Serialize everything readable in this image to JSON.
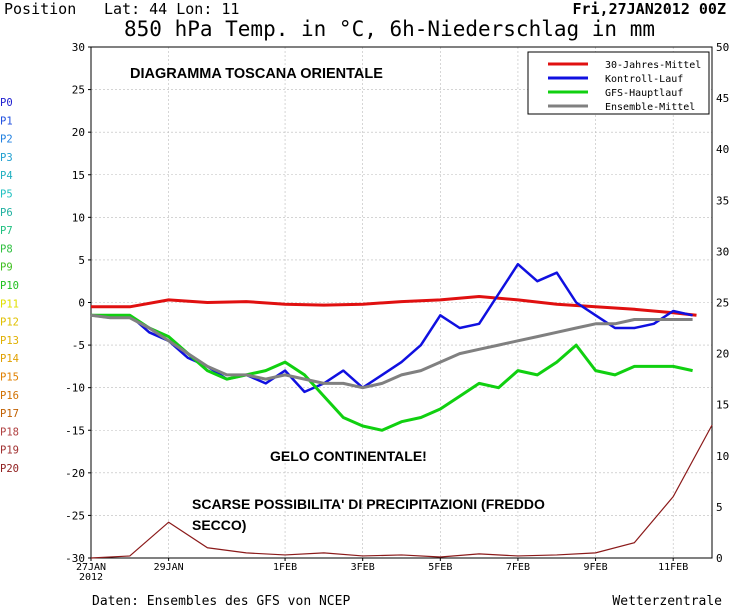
{
  "header": {
    "position_label": "Position",
    "lat_lon": "Lat: 44 Lon: 11",
    "date": "Fri,27JAN2012 00Z",
    "title": "850 hPa Temp. in °C, 6h-Niederschlag in mm"
  },
  "footer": {
    "source": "Daten: Ensembles des GFS von NCEP",
    "brand": "Wetterzentrale"
  },
  "annotations": {
    "region": "DIAGRAMMA TOSCANA ORIENTALE",
    "frost": "GELO CONTINENTALE!",
    "precip_line1": "SCARSE POSSIBILITA' DI PRECIPITAZIONI (FREDDO",
    "precip_line2": "SECCO)"
  },
  "members": [
    {
      "label": "P0",
      "color": "#2020d0"
    },
    {
      "label": "P1",
      "color": "#2050e0"
    },
    {
      "label": "P2",
      "color": "#2080e0"
    },
    {
      "label": "P3",
      "color": "#20a0d0"
    },
    {
      "label": "P4",
      "color": "#20b0c0"
    },
    {
      "label": "P5",
      "color": "#20c0c0"
    },
    {
      "label": "P6",
      "color": "#20b0a0"
    },
    {
      "label": "P7",
      "color": "#20c080"
    },
    {
      "label": "P8",
      "color": "#30c040"
    },
    {
      "label": "P9",
      "color": "#40c020"
    },
    {
      "label": "P10",
      "color": "#20c020"
    },
    {
      "label": "P11",
      "color": "#e0e000"
    },
    {
      "label": "P12",
      "color": "#e0c000"
    },
    {
      "label": "P13",
      "color": "#e0b000"
    },
    {
      "label": "P14",
      "color": "#e0a000"
    },
    {
      "label": "P15",
      "color": "#e08000"
    },
    {
      "label": "P16",
      "color": "#d07000"
    },
    {
      "label": "P17",
      "color": "#c06000"
    },
    {
      "label": "P18",
      "color": "#b04040"
    },
    {
      "label": "P19",
      "color": "#a03030"
    },
    {
      "label": "P20",
      "color": "#902020"
    }
  ],
  "chart_data": {
    "type": "line",
    "x": [
      0,
      1,
      2,
      3,
      4,
      5,
      6,
      7,
      8,
      9,
      10,
      11,
      12,
      13,
      14,
      15,
      16
    ],
    "x_ticks": [
      "27JAN\n2012",
      "29JAN",
      "1FEB",
      "3FEB",
      "5FEB",
      "7FEB",
      "9FEB",
      "11FEB"
    ],
    "x_tick_positions": [
      0,
      2,
      5,
      7,
      9,
      11,
      13,
      15
    ],
    "ylim": [
      -30,
      30
    ],
    "y_ticks": [
      -30,
      -25,
      -20,
      -15,
      -10,
      -5,
      0,
      5,
      10,
      15,
      20,
      25,
      30
    ],
    "y2lim": [
      0,
      50
    ],
    "y2_ticks": [
      0,
      5,
      10,
      15,
      20,
      25,
      30,
      35,
      40,
      45,
      50
    ],
    "grid": true,
    "legend_position": "top-right",
    "series": [
      {
        "name": "30-Jahres-Mittel",
        "color": "#e01010",
        "x": [
          0,
          1,
          2,
          3,
          4,
          5,
          6,
          7,
          8,
          9,
          10,
          11,
          12,
          13,
          14,
          15,
          15.6
        ],
        "values": [
          -0.5,
          -0.5,
          0.3,
          0.0,
          0.1,
          -0.2,
          -0.3,
          -0.2,
          0.1,
          0.3,
          0.7,
          0.3,
          -0.2,
          -0.5,
          -0.8,
          -1.2,
          -1.5
        ]
      },
      {
        "name": "Kontroll-Lauf",
        "color": "#1010e0",
        "x": [
          0,
          0.5,
          1,
          1.5,
          2,
          2.5,
          3,
          3.5,
          4,
          4.5,
          5,
          5.5,
          6,
          6.5,
          7,
          7.5,
          8,
          8.5,
          9,
          9.5,
          10,
          10.5,
          11,
          11.5,
          12,
          12.5,
          13,
          13.5,
          14,
          14.5,
          15,
          15.5
        ],
        "values": [
          -1.5,
          -1.8,
          -1.5,
          -3.5,
          -4.5,
          -6.5,
          -7.5,
          -9,
          -8.5,
          -9.5,
          -8,
          -10.5,
          -9.5,
          -8,
          -10,
          -8.5,
          -7,
          -5,
          -1.5,
          -3,
          -2.5,
          1,
          4.5,
          2.5,
          3.5,
          0,
          -1.5,
          -3,
          -3,
          -2.5,
          -1,
          -1.5
        ]
      },
      {
        "name": "GFS-Hauptlauf",
        "color": "#10d010",
        "x": [
          0,
          0.5,
          1,
          1.5,
          2,
          2.5,
          3,
          3.5,
          4,
          4.5,
          5,
          5.5,
          6,
          6.5,
          7,
          7.5,
          8,
          8.5,
          9,
          9.5,
          10,
          10.5,
          11,
          11.5,
          12,
          12.5,
          13,
          13.5,
          14,
          14.5,
          15,
          15.5
        ],
        "values": [
          -1.5,
          -1.5,
          -1.5,
          -3,
          -4,
          -6,
          -8,
          -9,
          -8.5,
          -8,
          -7,
          -8.5,
          -11,
          -13.5,
          -14.5,
          -15,
          -14,
          -13.5,
          -12.5,
          -11,
          -9.5,
          -10,
          -8,
          -8.5,
          -7,
          -5,
          -8,
          -8.5,
          -7.5,
          -7.5,
          -7.5,
          -8
        ]
      },
      {
        "name": "Ensemble-Mittel",
        "color": "#808080",
        "x": [
          0,
          0.5,
          1,
          1.5,
          2,
          2.5,
          3,
          3.5,
          4,
          4.5,
          5,
          5.5,
          6,
          6.5,
          7,
          7.5,
          8,
          8.5,
          9,
          9.5,
          10,
          10.5,
          11,
          11.5,
          12,
          12.5,
          13,
          13.5,
          14,
          14.5,
          15,
          15.5
        ],
        "values": [
          -1.5,
          -1.8,
          -1.8,
          -3,
          -4.5,
          -6,
          -7.5,
          -8.5,
          -8.5,
          -9,
          -8.5,
          -9,
          -9.5,
          -9.5,
          -10,
          -9.5,
          -8.5,
          -8,
          -7,
          -6,
          -5.5,
          -5,
          -4.5,
          -4,
          -3.5,
          -3,
          -2.5,
          -2.5,
          -2,
          -2,
          -2,
          -2
        ]
      }
    ],
    "precipitation_mm": [
      0,
      0.2,
      3.5,
      1,
      0.5,
      0.3,
      0.5,
      0.2,
      0.3,
      0.1,
      0.4,
      0.2,
      0.3,
      0.5,
      1.5,
      6,
      13
    ]
  }
}
